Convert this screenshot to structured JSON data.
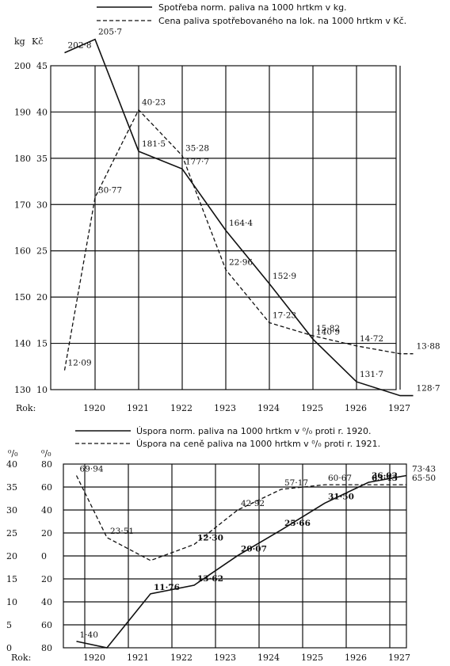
{
  "chart_data": [
    {
      "type": "line",
      "legend": [
        {
          "label": "Spotřeba norm. paliva na 1000 hrtkm v kg.",
          "style": "solid"
        },
        {
          "label": "Cena paliva spotřebovaného na lok. na 1000 hrtkm v Kč.",
          "style": "dashed"
        }
      ],
      "axis_unit_left": "kg",
      "axis_unit_right": "Kč",
      "x_prefix": "Rok:",
      "categories": [
        "1920",
        "1921",
        "1922",
        "1923",
        "1924",
        "1925",
        "1926",
        "1927"
      ],
      "y1_ticks": [
        "200",
        "190",
        "180",
        "170",
        "160",
        "150",
        "140",
        "130"
      ],
      "y2_ticks": [
        "45",
        "40",
        "35",
        "30",
        "25",
        "20",
        "15",
        "10"
      ],
      "y1lim": [
        130,
        200
      ],
      "y2lim": [
        10,
        45
      ],
      "grid": true,
      "legend_position": "top",
      "series": [
        {
          "axis": "kg",
          "style": "solid",
          "x": [
            1919.3,
            1920.0,
            1921.0,
            1922.0,
            1923.0,
            1924.0,
            1925.0,
            1926.0,
            1927.0,
            1927.3
          ],
          "values": [
            202.8,
            205.7,
            181.5,
            177.7,
            164.4,
            152.9,
            140.9,
            131.7,
            128.7,
            128.7
          ]
        },
        {
          "axis": "Kč",
          "style": "dashed",
          "x": [
            1919.3,
            1920.0,
            1921.0,
            1922.0,
            1923.0,
            1924.0,
            1925.0,
            1926.0,
            1927.0,
            1927.3
          ],
          "values": [
            12.09,
            30.77,
            40.23,
            35.28,
            22.96,
            17.23,
            15.82,
            14.72,
            13.88,
            13.88
          ]
        }
      ],
      "data_labels": [
        {
          "text": "202·8",
          "x": 1919.3,
          "y": 202.8,
          "axis": "kg"
        },
        {
          "text": "205·7",
          "x": 1920.0,
          "y": 205.7,
          "axis": "kg"
        },
        {
          "text": "181·5",
          "x": 1921.0,
          "y": 181.5,
          "axis": "kg"
        },
        {
          "text": "177·7",
          "x": 1922.0,
          "y": 177.7,
          "axis": "kg"
        },
        {
          "text": "164·4",
          "x": 1923.0,
          "y": 164.4,
          "axis": "kg"
        },
        {
          "text": "152·9",
          "x": 1924.0,
          "y": 152.9,
          "axis": "kg"
        },
        {
          "text": "140·9",
          "x": 1925.0,
          "y": 140.9,
          "axis": "kg"
        },
        {
          "text": "131·7",
          "x": 1926.0,
          "y": 131.7,
          "axis": "kg"
        },
        {
          "text": "128·7",
          "x": 1927.3,
          "y": 128.7,
          "axis": "kg"
        },
        {
          "text": "12·09",
          "x": 1919.3,
          "y": 12.09,
          "axis": "Kč"
        },
        {
          "text": "30·77",
          "x": 1920.0,
          "y": 30.77,
          "axis": "Kč"
        },
        {
          "text": "40·23",
          "x": 1921.0,
          "y": 40.23,
          "axis": "Kč"
        },
        {
          "text": "35·28",
          "x": 1922.0,
          "y": 35.28,
          "axis": "Kč"
        },
        {
          "text": "22·96",
          "x": 1923.0,
          "y": 22.96,
          "axis": "Kč"
        },
        {
          "text": "17·23",
          "x": 1924.0,
          "y": 17.23,
          "axis": "Kč"
        },
        {
          "text": "15·82",
          "x": 1925.0,
          "y": 15.82,
          "axis": "Kč"
        },
        {
          "text": "14·72",
          "x": 1926.0,
          "y": 14.72,
          "axis": "Kč"
        },
        {
          "text": "13·88",
          "x": 1927.3,
          "y": 13.88,
          "axis": "Kč"
        }
      ]
    },
    {
      "type": "line",
      "legend": [
        {
          "label": "Úspora norm. paliva na 1000 hrtkm v ⁰/₀ proti r. 1920.",
          "style": "solid"
        },
        {
          "label": "Úspora na ceně paliva na 1000 hrtkm v ⁰/₀ proti r. 1921.",
          "style": "dashed"
        }
      ],
      "axis_unit_left": "⁰/₀",
      "axis_unit_right": "⁰/₀",
      "x_prefix": "Rok:",
      "categories": [
        "1920",
        "1921",
        "1922",
        "1923",
        "1924",
        "1925",
        "1926",
        "1927"
      ],
      "y1_ticks": [
        "40",
        "35",
        "30",
        "25",
        "20",
        "15",
        "10",
        "5",
        "0"
      ],
      "y2_ticks": [
        "80",
        "60",
        "40",
        "20",
        "0",
        "20",
        "40",
        "60",
        "80"
      ],
      "y1lim": [
        0,
        40
      ],
      "grid": true,
      "legend_position": "top",
      "series": [
        {
          "style": "solid",
          "x": [
            1919.3,
            1920.0,
            1921.0,
            1922.0,
            1923.0,
            1924.0,
            1925.0,
            1926.0,
            1927.0,
            1927.3
          ],
          "values": [
            1.4,
            0.0,
            11.76,
            13.62,
            20.07,
            25.66,
            31.5,
            36.02,
            37.5,
            37.5
          ]
        },
        {
          "style": "dashed",
          "x": [
            1919.3,
            1920.0,
            1921.0,
            1922.0,
            1923.0,
            1924.0,
            1925.0,
            1926.0,
            1927.0,
            1927.3
          ],
          "values": [
            37.5,
            24.0,
            19.0,
            22.5,
            30.0,
            34.5,
            35.5,
            35.5,
            35.5,
            35.5
          ]
        }
      ],
      "data_labels": [
        {
          "text": "1·40",
          "x": 1919.3,
          "y": 1.4,
          "bold": false
        },
        {
          "text": "11·76",
          "x": 1921.0,
          "y": 11.76,
          "bold": true
        },
        {
          "text": "13·62",
          "x": 1922.0,
          "y": 13.62,
          "bold": true
        },
        {
          "text": "20·07",
          "x": 1923.0,
          "y": 20.07,
          "bold": true
        },
        {
          "text": "25·66",
          "x": 1924.0,
          "y": 25.66,
          "bold": true
        },
        {
          "text": "31·50",
          "x": 1925.0,
          "y": 31.5,
          "bold": true
        },
        {
          "text": "36·02",
          "x": 1926.0,
          "y": 36.02,
          "bold": true
        },
        {
          "text": "73·43",
          "x": 1927.3,
          "y": 37.5,
          "bold": false
        },
        {
          "text": "69·94",
          "x": 1919.3,
          "y": 37.5,
          "bold": false
        },
        {
          "text": "23·51",
          "x": 1920.0,
          "y": 24.0,
          "bold": false
        },
        {
          "text": "12·30",
          "x": 1922.0,
          "y": 22.5,
          "bold": true
        },
        {
          "text": "42·92",
          "x": 1923.0,
          "y": 30.0,
          "bold": false
        },
        {
          "text": "57·17",
          "x": 1924.0,
          "y": 34.5,
          "bold": false
        },
        {
          "text": "60·67",
          "x": 1925.0,
          "y": 35.5,
          "bold": false
        },
        {
          "text": "63·43",
          "x": 1926.0,
          "y": 35.5,
          "bold": true
        },
        {
          "text": "65·50",
          "x": 1927.3,
          "y": 35.5,
          "bold": false
        }
      ]
    }
  ]
}
